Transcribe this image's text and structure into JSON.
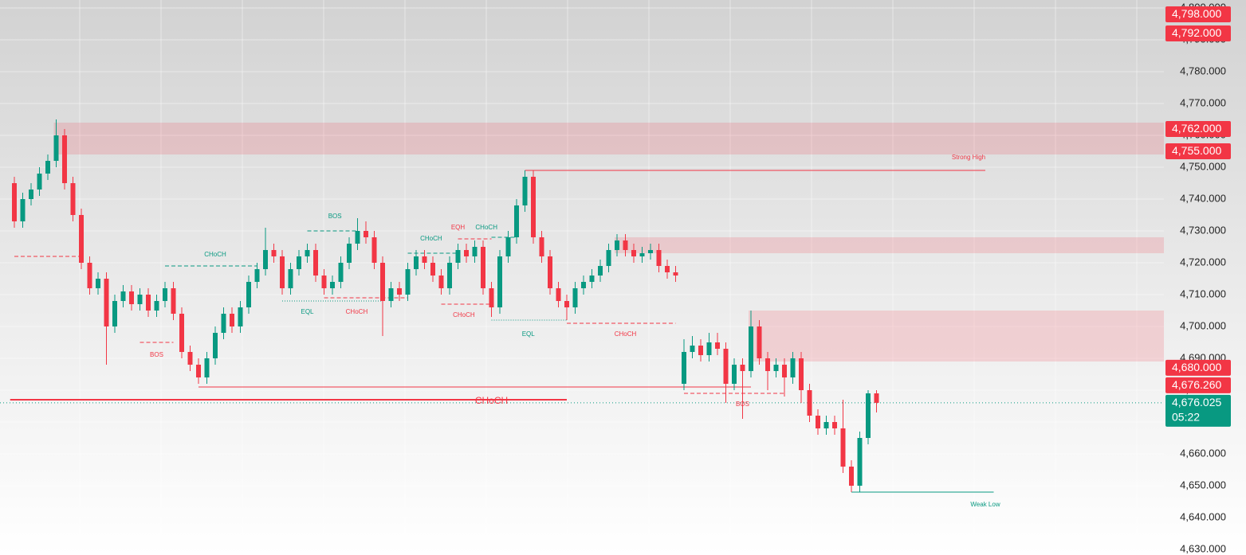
{
  "chart_data": {
    "type": "candlestick",
    "ylim": [
      4630,
      4800
    ],
    "yticks": [
      {
        "value": 4630,
        "label": "4,630.000"
      },
      {
        "value": 4640,
        "label": "4,640.000"
      },
      {
        "value": 4650,
        "label": "4,650.000"
      },
      {
        "value": 4660,
        "label": "4,660.000"
      },
      {
        "value": 4670,
        "label": "4,670.000"
      },
      {
        "value": 4680,
        "label": "4,680.000"
      },
      {
        "value": 4690,
        "label": "4,690.000"
      },
      {
        "value": 4700,
        "label": "4,700.000"
      },
      {
        "value": 4710,
        "label": "4,710.000"
      },
      {
        "value": 4720,
        "label": "4,720.000"
      },
      {
        "value": 4730,
        "label": "4,730.000"
      },
      {
        "value": 4740,
        "label": "4,740.000"
      },
      {
        "value": 4750,
        "label": "4,750.000"
      },
      {
        "value": 4760,
        "label": "4,760.000"
      },
      {
        "value": 4770,
        "label": "4,770.000"
      },
      {
        "value": 4780,
        "label": "4,780.000"
      },
      {
        "value": 4790,
        "label": "4,790.000"
      },
      {
        "value": 4800,
        "label": "4,800.000"
      }
    ],
    "grid": true,
    "up_color": "#089981",
    "down_color": "#f23645",
    "candles": [
      [
        4745,
        4747,
        4731,
        4733
      ],
      [
        4733,
        4742,
        4731,
        4740
      ],
      [
        4740,
        4745,
        4738,
        4743
      ],
      [
        4743,
        4750,
        4741,
        4748
      ],
      [
        4748,
        4754,
        4746,
        4752
      ],
      [
        4752,
        4765,
        4750,
        4760
      ],
      [
        4760,
        4762,
        4743,
        4745
      ],
      [
        4745,
        4747,
        4733,
        4735
      ],
      [
        4735,
        4737,
        4718,
        4720
      ],
      [
        4720,
        4722,
        4710,
        4712
      ],
      [
        4712,
        4717,
        4710,
        4715
      ],
      [
        4715,
        4717,
        4688,
        4700
      ],
      [
        4700,
        4710,
        4698,
        4708
      ],
      [
        4708,
        4713,
        4706,
        4711
      ],
      [
        4711,
        4713,
        4705,
        4707
      ],
      [
        4707,
        4712,
        4705,
        4710
      ],
      [
        4710,
        4712,
        4703,
        4705
      ],
      [
        4705,
        4710,
        4703,
        4708
      ],
      [
        4708,
        4714,
        4706,
        4712
      ],
      [
        4712,
        4714,
        4702,
        4704
      ],
      [
        4704,
        4706,
        4690,
        4692
      ],
      [
        4692,
        4694,
        4686,
        4688
      ],
      [
        4688,
        4690,
        4682,
        4684
      ],
      [
        4684,
        4692,
        4682,
        4690
      ],
      [
        4690,
        4700,
        4688,
        4698
      ],
      [
        4698,
        4706,
        4696,
        4704
      ],
      [
        4704,
        4706,
        4698,
        4700
      ],
      [
        4700,
        4708,
        4698,
        4706
      ],
      [
        4706,
        4716,
        4704,
        4714
      ],
      [
        4714,
        4720,
        4712,
        4718
      ],
      [
        4718,
        4731,
        4716,
        4724
      ],
      [
        4724,
        4726,
        4720,
        4722
      ],
      [
        4722,
        4724,
        4710,
        4712
      ],
      [
        4712,
        4720,
        4710,
        4718
      ],
      [
        4718,
        4724,
        4716,
        4722
      ],
      [
        4722,
        4726,
        4720,
        4724
      ],
      [
        4724,
        4726,
        4714,
        4716
      ],
      [
        4716,
        4718,
        4710,
        4712
      ],
      [
        4712,
        4716,
        4710,
        4714
      ],
      [
        4714,
        4722,
        4712,
        4720
      ],
      [
        4720,
        4728,
        4718,
        4726
      ],
      [
        4726,
        4734,
        4724,
        4730
      ],
      [
        4730,
        4733,
        4726,
        4728
      ],
      [
        4728,
        4730,
        4718,
        4720
      ],
      [
        4720,
        4722,
        4697,
        4708
      ],
      [
        4708,
        4714,
        4706,
        4712
      ],
      [
        4712,
        4714,
        4708,
        4710
      ],
      [
        4710,
        4720,
        4708,
        4718
      ],
      [
        4718,
        4724,
        4716,
        4722
      ],
      [
        4722,
        4724,
        4718,
        4720
      ],
      [
        4720,
        4722,
        4714,
        4716
      ],
      [
        4716,
        4718,
        4710,
        4712
      ],
      [
        4712,
        4722,
        4710,
        4720
      ],
      [
        4720,
        4726,
        4718,
        4724
      ],
      [
        4724,
        4726,
        4720,
        4722
      ],
      [
        4722,
        4727,
        4720,
        4725
      ],
      [
        4725,
        4727,
        4710,
        4712
      ],
      [
        4712,
        4714,
        4703,
        4706
      ],
      [
        4706,
        4724,
        4704,
        4722
      ],
      [
        4722,
        4730,
        4720,
        4728
      ],
      [
        4728,
        4740,
        4726,
        4738
      ],
      [
        4738,
        4749,
        4736,
        4747
      ],
      [
        4747,
        4749,
        4726,
        4728
      ],
      [
        4728,
        4730,
        4720,
        4722
      ],
      [
        4722,
        4724,
        4710,
        4712
      ],
      [
        4712,
        4714,
        4706,
        4708
      ],
      [
        4708,
        4710,
        4702,
        4706
      ],
      [
        4706,
        4714,
        4704,
        4712
      ],
      [
        4712,
        4716,
        4710,
        4714
      ],
      [
        4714,
        4718,
        4712,
        4716
      ],
      [
        4716,
        4721,
        4714,
        4719
      ],
      [
        4719,
        4726,
        4717,
        4724
      ],
      [
        4724,
        4729,
        4722,
        4727
      ],
      [
        4727,
        4729,
        4722,
        4724
      ],
      [
        4724,
        4726,
        4720,
        4722
      ],
      [
        4722,
        4725,
        4720,
        4723
      ],
      [
        4723,
        4726,
        4721,
        4724
      ],
      [
        4724,
        4726,
        4717,
        4719
      ],
      [
        4719,
        4721,
        4715,
        4717
      ],
      [
        4717,
        4719,
        4714,
        4716
      ],
      [
        4682,
        4696,
        4680,
        4692
      ],
      [
        4692,
        4697,
        4690,
        4694
      ],
      [
        4694,
        4696,
        4689,
        4691
      ],
      [
        4691,
        4698,
        4689,
        4695
      ],
      [
        4695,
        4698,
        4691,
        4693
      ],
      [
        4693,
        4695,
        4676,
        4682
      ],
      [
        4682,
        4690,
        4680,
        4688
      ],
      [
        4688,
        4690,
        4671,
        4686
      ],
      [
        4686,
        4705,
        4684,
        4700
      ],
      [
        4700,
        4702,
        4688,
        4690
      ],
      [
        4690,
        4692,
        4680,
        4686
      ],
      [
        4686,
        4690,
        4684,
        4688
      ],
      [
        4688,
        4690,
        4678,
        4684
      ],
      [
        4684,
        4692,
        4682,
        4690
      ],
      [
        4690,
        4692,
        4676,
        4680
      ],
      [
        4680,
        4682,
        4670,
        4672
      ],
      [
        4672,
        4674,
        4666,
        4668
      ],
      [
        4668,
        4672,
        4666,
        4670
      ],
      [
        4670,
        4672,
        4666,
        4668
      ],
      [
        4668,
        4677,
        4654,
        4656
      ],
      [
        4656,
        4658,
        4648,
        4650
      ],
      [
        4650,
        4667,
        4648,
        4665
      ],
      [
        4665,
        4680,
        4663,
        4679
      ],
      [
        4679,
        4680,
        4673,
        4676.025
      ]
    ],
    "zones": [
      {
        "top": 4764,
        "bottom": 4754,
        "from": 5,
        "color": "rgba(242,54,69,0.17)"
      },
      {
        "top": 4728,
        "bottom": 4723,
        "from": 72,
        "color": "rgba(242,54,69,0.17)"
      },
      {
        "top": 4705,
        "bottom": 4689,
        "from": 88,
        "color": "rgba(242,54,69,0.17)"
      }
    ],
    "levels": [
      {
        "value": 4749,
        "from": 61,
        "to": 116,
        "style": "solid",
        "color": "#f23645"
      },
      {
        "value": 4648,
        "from": 100,
        "to": 117,
        "style": "solid",
        "color": "#089981"
      },
      {
        "value": 4677,
        "from": -0.5,
        "to": 66,
        "style": "bold",
        "color": "#f23645"
      },
      {
        "value": 4681,
        "from": 22,
        "to": 88,
        "style": "solid",
        "color": "#f23645"
      },
      {
        "value": 4722,
        "from": 0,
        "to": 8,
        "style": "dashed",
        "color": "#f23645"
      },
      {
        "value": 4730,
        "from": 35,
        "to": 41,
        "style": "dashed",
        "color": "#089981"
      },
      {
        "value": 4719,
        "from": 18,
        "to": 29,
        "style": "dashed",
        "color": "#089981"
      },
      {
        "value": 4695,
        "from": 15,
        "to": 19,
        "style": "dashed",
        "color": "#f23645"
      },
      {
        "value": 4708,
        "from": 32,
        "to": 44,
        "style": "dotted",
        "color": "#089981"
      },
      {
        "value": 4709,
        "from": 37,
        "to": 47,
        "style": "dashed",
        "color": "#f23645"
      },
      {
        "value": 4723,
        "from": 47,
        "to": 53,
        "style": "dashed",
        "color": "#089981"
      },
      {
        "value": 4727.5,
        "from": 53,
        "to": 57,
        "style": "dashed",
        "color": "#f23645"
      },
      {
        "value": 4728,
        "from": 57,
        "to": 60,
        "style": "dashed",
        "color": "#089981"
      },
      {
        "value": 4707,
        "from": 51,
        "to": 57,
        "style": "dashed",
        "color": "#f23645"
      },
      {
        "value": 4702,
        "from": 57,
        "to": 66,
        "style": "dotted",
        "color": "#089981"
      },
      {
        "value": 4701,
        "from": 66,
        "to": 79,
        "style": "dashed",
        "color": "#f23645"
      },
      {
        "value": 4679,
        "from": 80,
        "to": 92,
        "style": "dashed",
        "color": "#f23645"
      }
    ],
    "annotations": [
      {
        "text": "Strong High",
        "x": 114,
        "y": 4753,
        "color": "#f23645"
      },
      {
        "text": "Weak Low",
        "x": 116,
        "y": 4644,
        "color": "#089981"
      },
      {
        "text": "CHoCH",
        "x": 57,
        "y": 4676.5,
        "color": "#f23645",
        "style": "large"
      },
      {
        "text": "BOS",
        "x": 38.3,
        "y": 4734.5,
        "color": "#089981"
      },
      {
        "text": "CHoCH",
        "x": 24,
        "y": 4722.5,
        "color": "#089981"
      },
      {
        "text": "BOS",
        "x": 17,
        "y": 4691,
        "color": "#f23645"
      },
      {
        "text": "EQL",
        "x": 35,
        "y": 4704.5,
        "color": "#089981"
      },
      {
        "text": "CHoCH",
        "x": 40.9,
        "y": 4704.5,
        "color": "#f23645"
      },
      {
        "text": "CHoCH",
        "x": 49.8,
        "y": 4727.5,
        "color": "#089981"
      },
      {
        "text": "EQH",
        "x": 53,
        "y": 4731,
        "color": "#f23645"
      },
      {
        "text": "CHoCH",
        "x": 56.4,
        "y": 4731,
        "color": "#089981"
      },
      {
        "text": "CHoCH",
        "x": 53.7,
        "y": 4703.5,
        "color": "#f23645"
      },
      {
        "text": "EQL",
        "x": 61.4,
        "y": 4697.5,
        "color": "#089981"
      },
      {
        "text": "CHoCH",
        "x": 73,
        "y": 4697.5,
        "color": "#f23645"
      },
      {
        "text": "BOS",
        "x": 87,
        "y": 4675.5,
        "color": "#f23645"
      }
    ],
    "price_labels": [
      {
        "value": 4798,
        "label": "4,798.000",
        "color": "#f23645"
      },
      {
        "value": 4792,
        "label": "4,792.000",
        "color": "#f23645"
      },
      {
        "value": 4762,
        "label": "4,762.000",
        "color": "#f23645"
      },
      {
        "value": 4755,
        "label": "4,755.000",
        "color": "#f23645"
      },
      {
        "value": 4680,
        "label": "4,680.000",
        "color": "#f23645"
      },
      {
        "value": 4676.26,
        "label": "4,676.260",
        "color": "#f23645"
      },
      {
        "value": 4676.025,
        "label": "4,676.025",
        "color": "#089981",
        "countdown": "05:22"
      }
    ]
  }
}
